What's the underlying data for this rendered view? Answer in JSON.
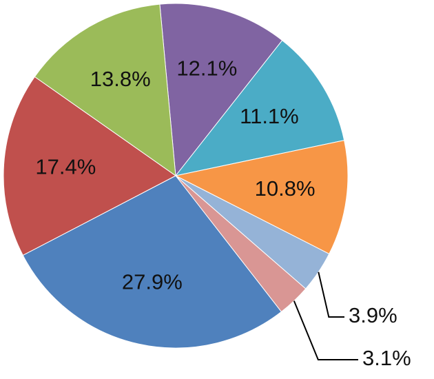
{
  "chart_data": {
    "type": "pie",
    "values": [
      12.1,
      11.1,
      10.8,
      3.9,
      3.1,
      27.9,
      17.4,
      13.8
    ],
    "value_labels": [
      "12.1%",
      "11.1%",
      "10.8%",
      "3.9%",
      "3.1%",
      "27.9%",
      "17.4%",
      "13.8%"
    ],
    "colors": [
      "#8064a2",
      "#4bacc6",
      "#f79646",
      "#95b3d7",
      "#d99694",
      "#4f81bd",
      "#c0504d",
      "#9bbb59"
    ]
  }
}
